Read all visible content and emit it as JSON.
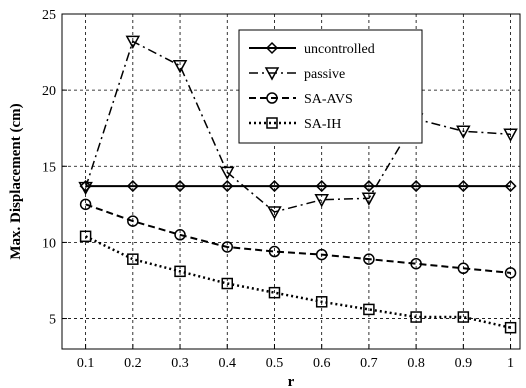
{
  "chart_data": {
    "type": "line",
    "title": "",
    "xlabel": "r",
    "ylabel": "Max. Displacement (cm)",
    "x": [
      0.1,
      0.2,
      0.3,
      0.4,
      0.5,
      0.6,
      0.7,
      0.8,
      0.9,
      1
    ],
    "x_tick_labels": [
      "0.1",
      "0.2",
      "0.3",
      "0.4",
      "0.5",
      "0.6",
      "0.7",
      "0.8",
      "0.9",
      "1"
    ],
    "y_ticks": [
      5,
      10,
      15,
      20,
      25
    ],
    "y_tick_labels": [
      "5",
      "10",
      "15",
      "20",
      "25"
    ],
    "xlim": [
      0.05,
      1.02
    ],
    "ylim": [
      3,
      25
    ],
    "grid": true,
    "legend_position": "top-right",
    "series": [
      {
        "name": "uncontrolled",
        "marker": "diamond",
        "dash": "solid",
        "values": [
          13.7,
          13.7,
          13.7,
          13.7,
          13.7,
          13.7,
          13.7,
          13.7,
          13.7,
          13.7
        ]
      },
      {
        "name": "passive",
        "marker": "triangle-down",
        "dash": "dashdot",
        "values": [
          13.6,
          23.2,
          21.6,
          14.6,
          12.0,
          12.8,
          12.9,
          18.1,
          17.3,
          17.1
        ]
      },
      {
        "name": "SA-AVS",
        "marker": "circle",
        "dash": "dashed",
        "values": [
          12.5,
          11.4,
          10.5,
          9.7,
          9.4,
          9.2,
          8.9,
          8.6,
          8.3,
          8.0
        ]
      },
      {
        "name": "SA-IH",
        "marker": "square",
        "dash": "dotted",
        "values": [
          10.4,
          8.9,
          8.1,
          7.3,
          6.7,
          6.1,
          5.6,
          5.1,
          5.1,
          4.4
        ]
      }
    ]
  }
}
